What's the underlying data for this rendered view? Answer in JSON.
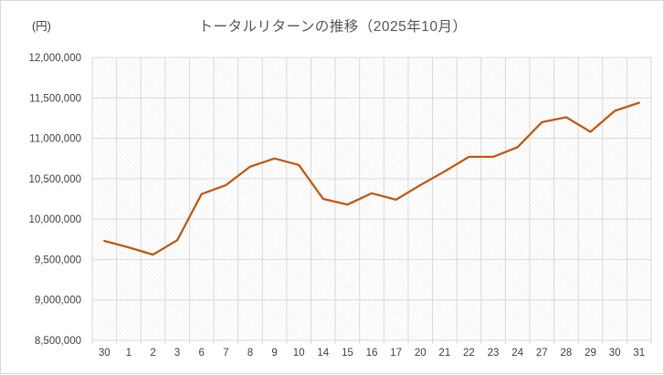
{
  "chart": {
    "title": "トータルリターンの推移（2025年10月）",
    "units_label": "(円)",
    "colors": {
      "line": "#C55A11",
      "title_text": "#595959",
      "axis_text": "#444444",
      "gridline": "#D9D9D9",
      "frame_border": "#D9D9D9",
      "hatch": "#E8E8E8"
    }
  },
  "chart_data": {
    "type": "line",
    "title": "トータルリターンの推移（2025年10月）",
    "xlabel": "",
    "ylabel": "(円)",
    "categories": [
      "30",
      "1",
      "2",
      "3",
      "6",
      "7",
      "8",
      "9",
      "10",
      "14",
      "15",
      "16",
      "17",
      "20",
      "21",
      "22",
      "23",
      "24",
      "27",
      "28",
      "29",
      "30",
      "31"
    ],
    "values": [
      9730000,
      9650000,
      9560000,
      9740000,
      10310000,
      10420000,
      10650000,
      10750000,
      10670000,
      10250000,
      10180000,
      10320000,
      10240000,
      10420000,
      10590000,
      10770000,
      10770000,
      10890000,
      11200000,
      11260000,
      11080000,
      11340000,
      11440000
    ],
    "ylim": [
      8500000,
      12000000
    ],
    "ytick_step": 500000,
    "ytick_labels": [
      "8,500,000",
      "9,000,000",
      "9,500,000",
      "10,000,000",
      "10,500,000",
      "11,000,000",
      "11,500,000",
      "12,000,000"
    ],
    "grid": "both",
    "legend": "none",
    "plot_background": "light-diagonal-hatch",
    "series_name": "トータルリターン"
  }
}
